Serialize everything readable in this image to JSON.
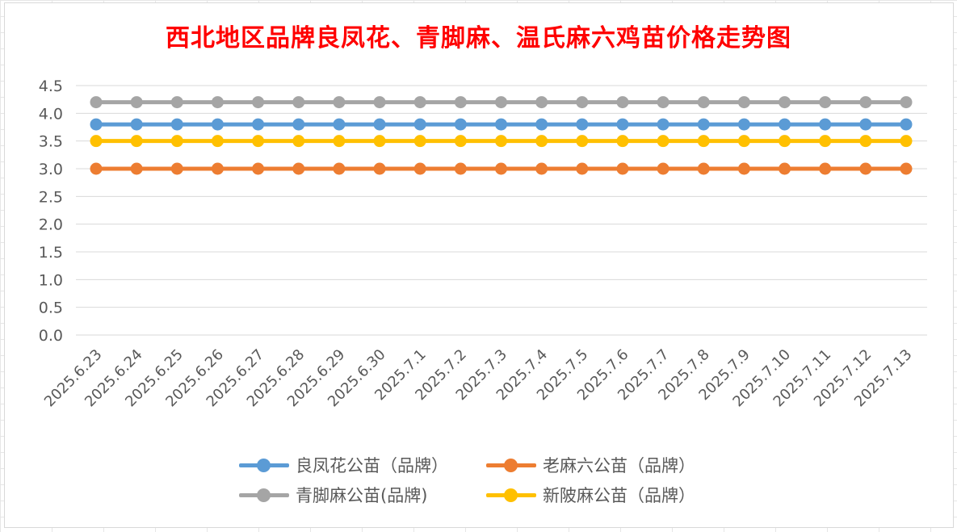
{
  "chart_data": {
    "type": "line",
    "title": "西北地区品牌良凤花、青脚麻、温氏麻六鸡苗价格走势图",
    "xlabel": "",
    "ylabel": "",
    "ylim": [
      0,
      4.5
    ],
    "y_ticks": [
      "0.0",
      "0.5",
      "1.0",
      "1.5",
      "2.0",
      "2.5",
      "3.0",
      "3.5",
      "4.0",
      "4.5"
    ],
    "categories": [
      "2025.6.23",
      "2025.6.24",
      "2025.6.25",
      "2025.6.26",
      "2025.6.27",
      "2025.6.28",
      "2025.6.29",
      "2025.6.30",
      "2025.7.1",
      "2025.7.2",
      "2025.7.3",
      "2025.7.4",
      "2025.7.5",
      "2025.7.6",
      "2025.7.7",
      "2025.7.8",
      "2025.7.9",
      "2025.7.10",
      "2025.7.11",
      "2025.7.12",
      "2025.7.13"
    ],
    "grid": true,
    "legend_position": "bottom",
    "series": [
      {
        "name": "良凤花公苗（品牌）",
        "color": "#5b9bd5",
        "values": [
          3.8,
          3.8,
          3.8,
          3.8,
          3.8,
          3.8,
          3.8,
          3.8,
          3.8,
          3.8,
          3.8,
          3.8,
          3.8,
          3.8,
          3.8,
          3.8,
          3.8,
          3.8,
          3.8,
          3.8,
          3.8
        ]
      },
      {
        "name": "老麻六公苗（品牌）",
        "color": "#ed7d31",
        "values": [
          3.0,
          3.0,
          3.0,
          3.0,
          3.0,
          3.0,
          3.0,
          3.0,
          3.0,
          3.0,
          3.0,
          3.0,
          3.0,
          3.0,
          3.0,
          3.0,
          3.0,
          3.0,
          3.0,
          3.0,
          3.0
        ]
      },
      {
        "name": "青脚麻公苗(品牌)",
        "color": "#a5a5a5",
        "values": [
          4.2,
          4.2,
          4.2,
          4.2,
          4.2,
          4.2,
          4.2,
          4.2,
          4.2,
          4.2,
          4.2,
          4.2,
          4.2,
          4.2,
          4.2,
          4.2,
          4.2,
          4.2,
          4.2,
          4.2,
          4.2
        ]
      },
      {
        "name": "新陂麻公苗（品牌）",
        "color": "#ffc000",
        "values": [
          3.5,
          3.5,
          3.5,
          3.5,
          3.5,
          3.5,
          3.5,
          3.5,
          3.5,
          3.5,
          3.5,
          3.5,
          3.5,
          3.5,
          3.5,
          3.5,
          3.5,
          3.5,
          3.5,
          3.5,
          3.5
        ]
      }
    ]
  }
}
